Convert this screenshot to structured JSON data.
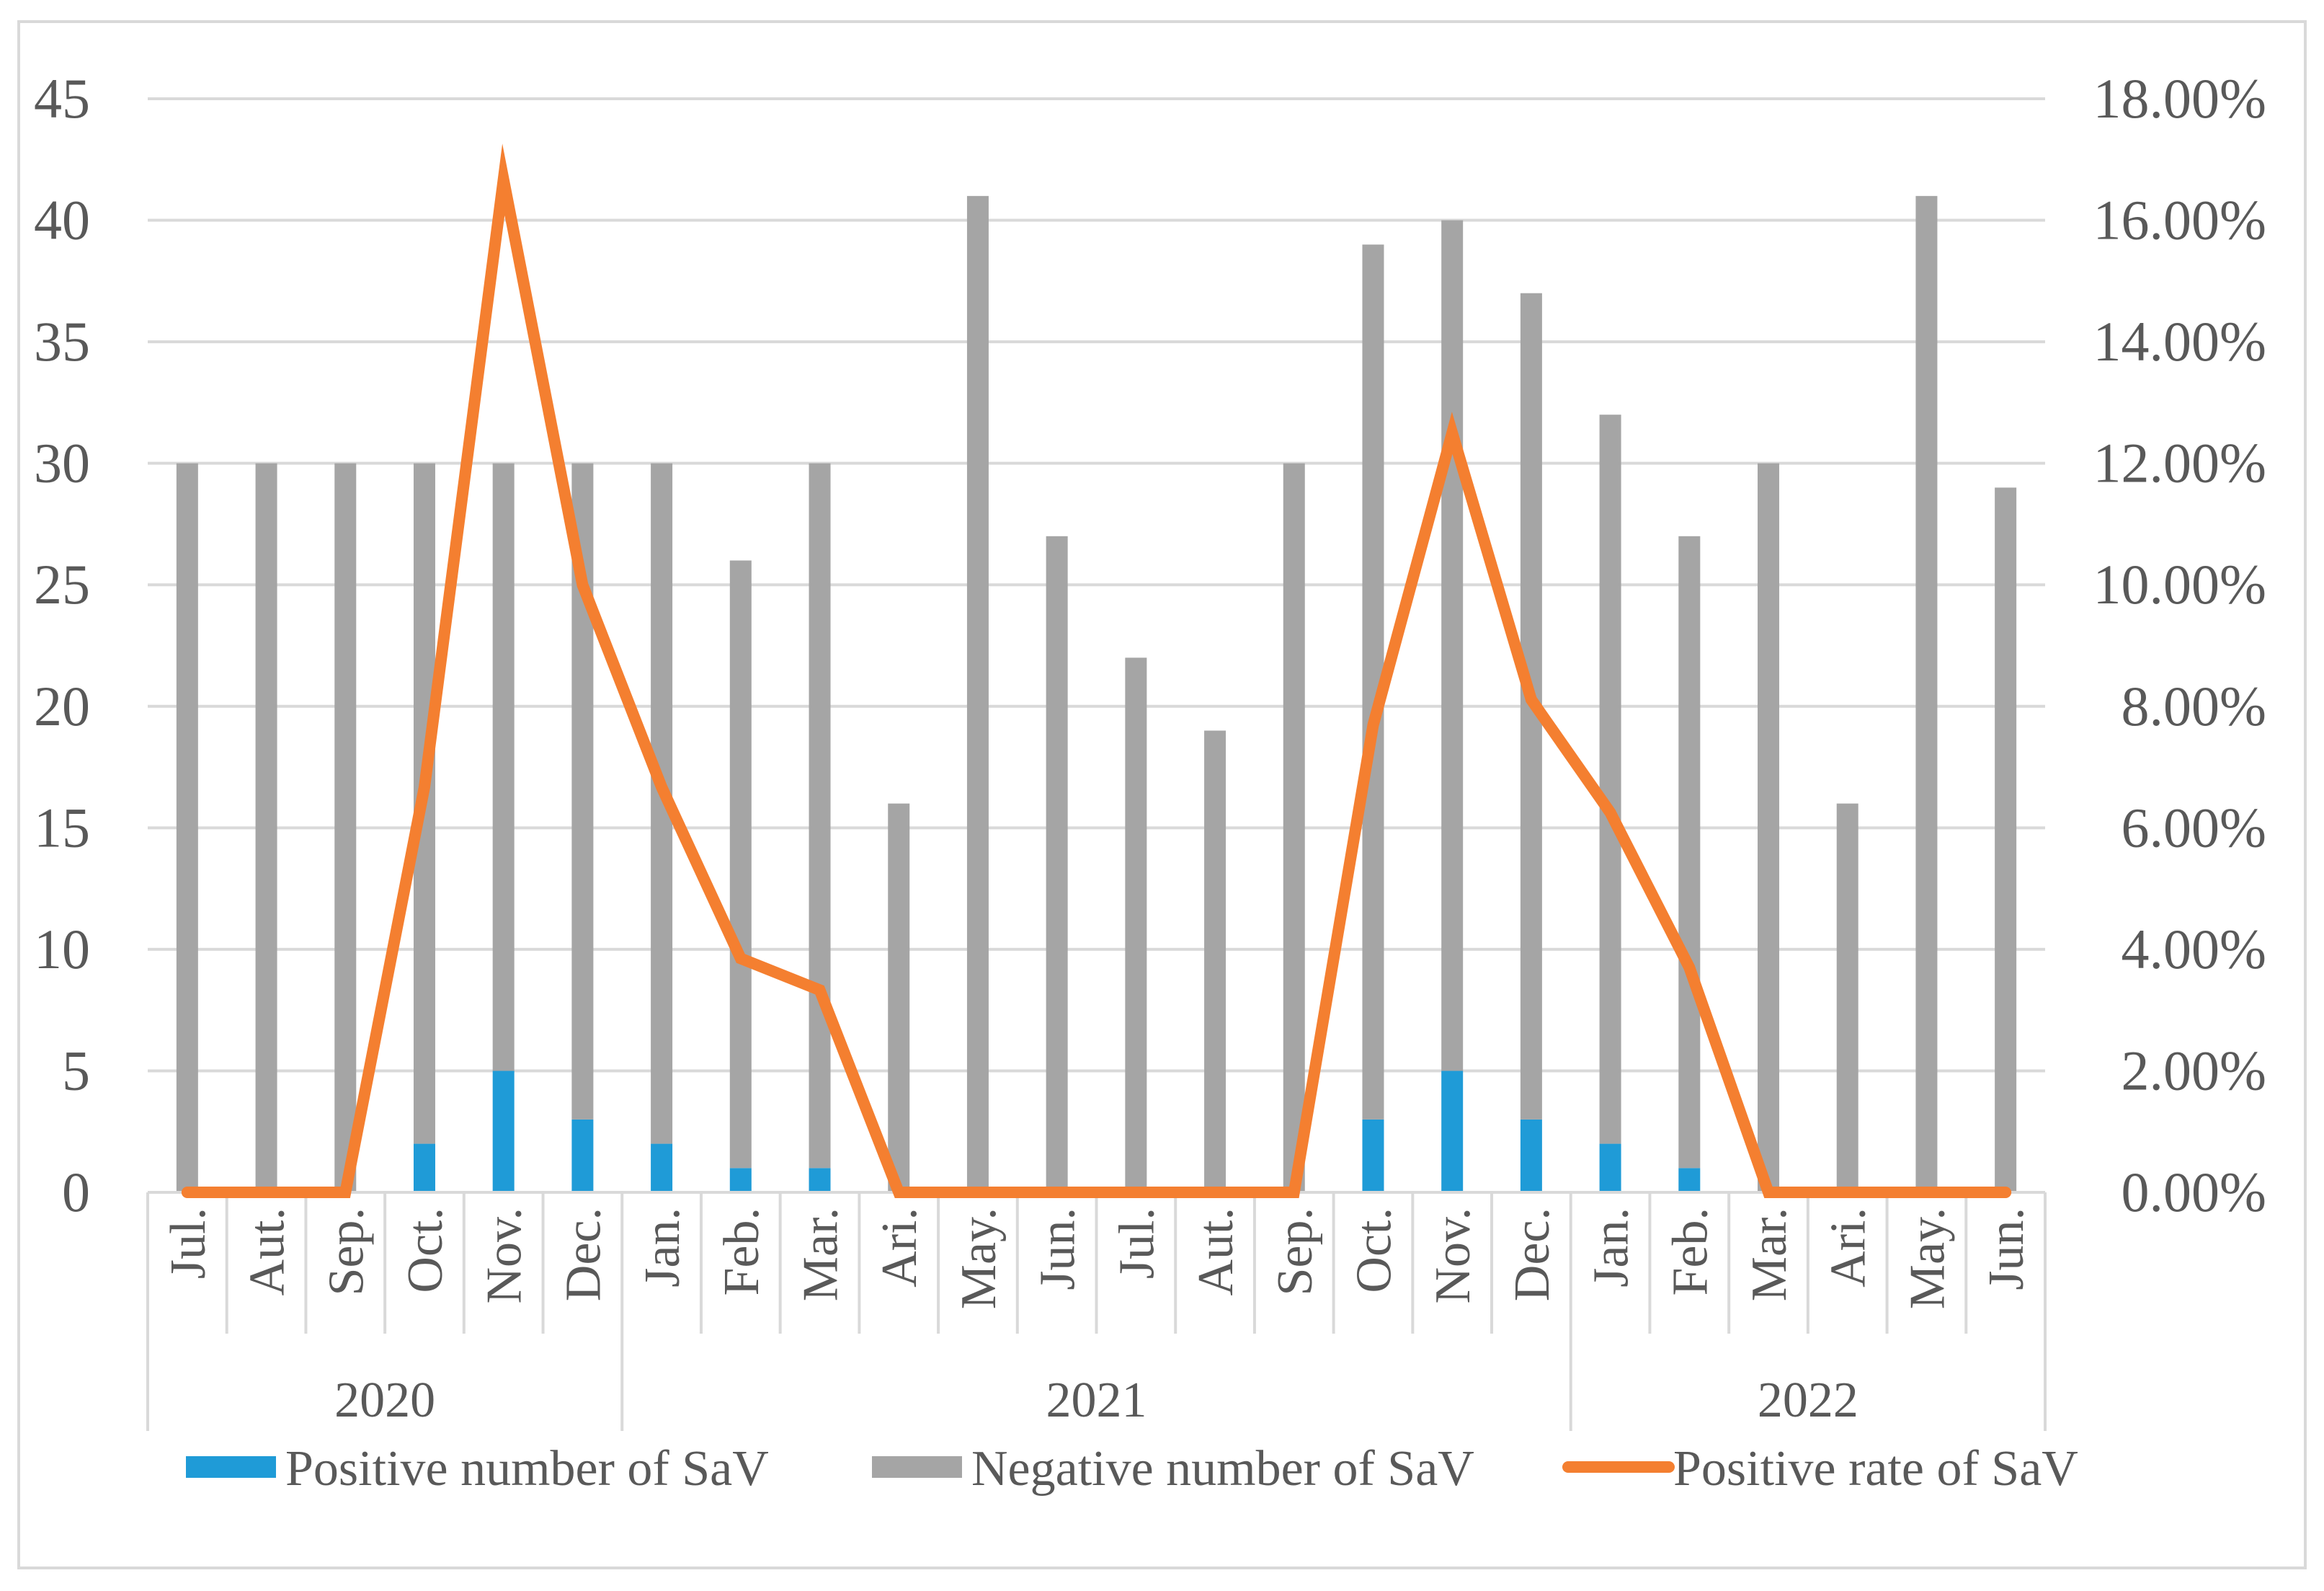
{
  "chart_data": {
    "type": "bar",
    "stacked": true,
    "title": "",
    "categories": [
      "Jul.",
      "Aut.",
      "Sep.",
      "Oct.",
      "Nov.",
      "Dec.",
      "Jan.",
      "Feb.",
      "Mar.",
      "Ari.",
      "May.",
      "Jun.",
      "Jul.",
      "Aut.",
      "Sep.",
      "Oct.",
      "Nov.",
      "Dec.",
      "Jan.",
      "Feb.",
      "Mar.",
      "Ari.",
      "May.",
      "Jun."
    ],
    "year_groups": [
      {
        "label": "2020",
        "start": 0,
        "end": 5
      },
      {
        "label": "2021",
        "start": 6,
        "end": 17
      },
      {
        "label": "2022",
        "start": 18,
        "end": 23
      }
    ],
    "series": [
      {
        "name": "Positive number of SaV",
        "type": "bar",
        "axis": "left",
        "color": "#1f9bd7",
        "values": [
          0,
          0,
          0,
          2,
          5,
          3,
          2,
          1,
          1,
          0,
          0,
          0,
          0,
          0,
          0,
          3,
          5,
          3,
          2,
          1,
          0,
          0,
          0,
          0
        ]
      },
      {
        "name": "Negative number of SaV",
        "type": "bar",
        "axis": "left",
        "color": "#a5a5a5",
        "values": [
          30,
          30,
          30,
          28,
          25,
          27,
          28,
          25,
          29,
          16,
          41,
          27,
          22,
          19,
          30,
          36,
          35,
          34,
          30,
          26,
          30,
          16,
          41,
          29
        ]
      },
      {
        "name": "Positive rate of SaV",
        "type": "line",
        "axis": "right",
        "color": "#f47f30",
        "values": [
          0.0,
          0.0,
          0.0,
          6.67,
          16.67,
          10.0,
          6.67,
          3.85,
          3.33,
          0.0,
          0.0,
          0.0,
          0.0,
          0.0,
          0.0,
          7.69,
          12.5,
          8.11,
          6.25,
          3.7,
          0.0,
          0.0,
          0.0,
          0.0
        ]
      }
    ],
    "y_left": {
      "min": 0,
      "max": 45,
      "step": 5,
      "tick_labels": [
        "0",
        "5",
        "10",
        "15",
        "20",
        "25",
        "30",
        "35",
        "40",
        "45"
      ]
    },
    "y_right": {
      "min": 0,
      "max": 18,
      "step": 2,
      "tick_labels": [
        "0.00%",
        "2.00%",
        "4.00%",
        "6.00%",
        "8.00%",
        "10.00%",
        "12.00%",
        "14.00%",
        "16.00%",
        "18.00%"
      ]
    },
    "grid": true,
    "legend_position": "bottom",
    "xlabel": "",
    "ylabel": ""
  }
}
